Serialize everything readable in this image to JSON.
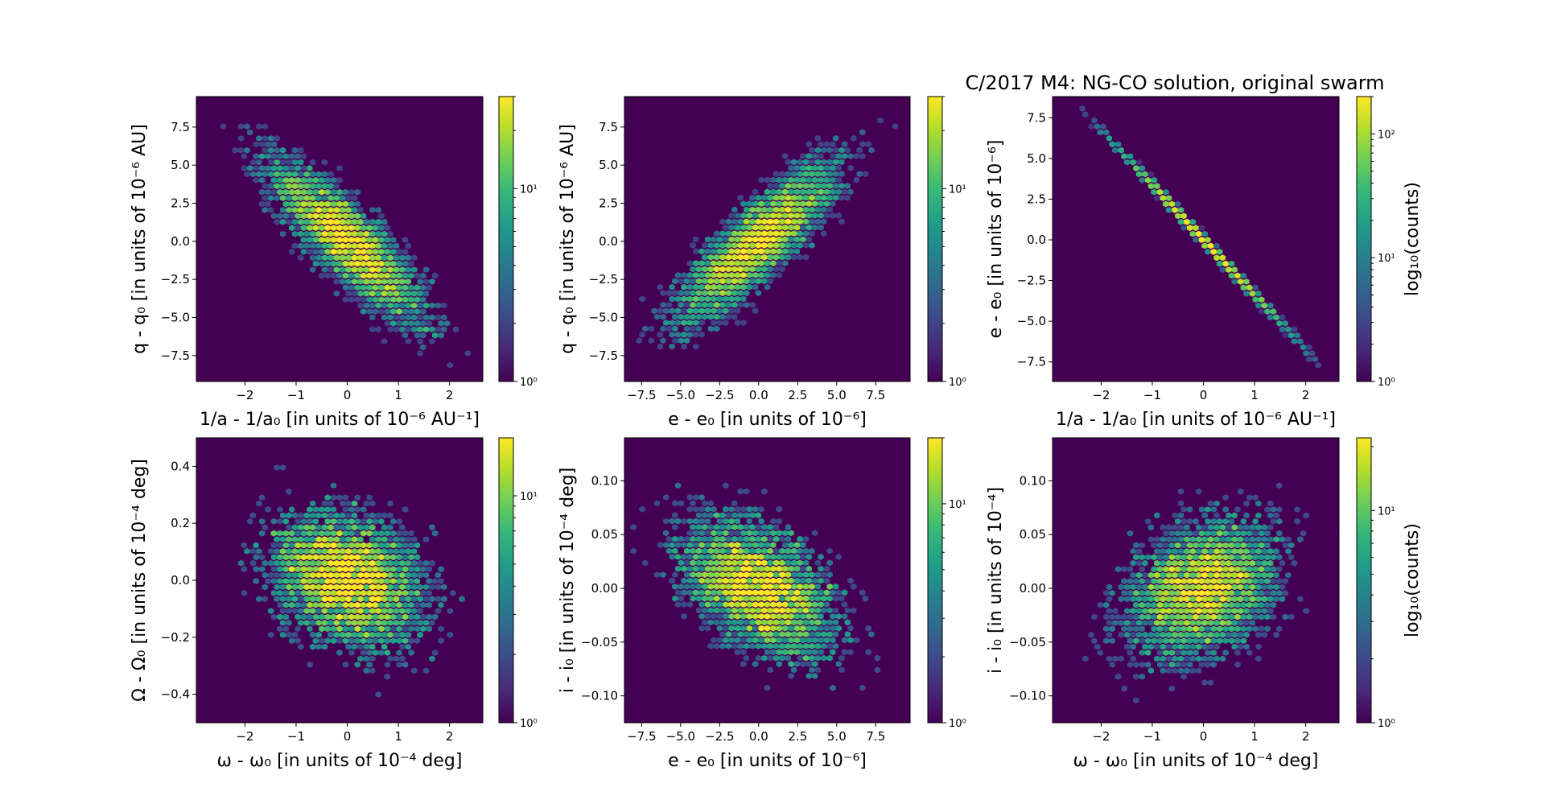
{
  "figure": {
    "title": "C/2017 M4: NG-CO solution, original swarm"
  },
  "chart_data": [
    {
      "type": "heatmap",
      "xlabel": "1/a - 1/a₀ [in units of 10⁻⁶ AU⁻¹]",
      "ylabel": "q - q₀ [in units of 10⁻⁶ AU]",
      "xlim": [
        -2.95,
        2.65
      ],
      "ylim": [
        -9.2,
        9.5
      ],
      "xticks": [
        -2,
        -1,
        0,
        1,
        2
      ],
      "xticklabels": [
        "−2",
        "−1",
        "0",
        "1",
        "2"
      ],
      "yticks": [
        7.5,
        5.0,
        2.5,
        0.0,
        -2.5,
        -5.0,
        -7.5
      ],
      "yticklabels": [
        "7.5",
        "5.0",
        "2.5",
        "0.0",
        "−2.5",
        "−5.0",
        "−7.5"
      ],
      "correlation": -0.85,
      "x_sd": 0.8,
      "y_sd": 2.8,
      "colorbar": {
        "scale": "log",
        "range": [
          1,
          30
        ],
        "ticklabels": [
          "10⁰",
          "10¹"
        ],
        "label": ""
      }
    },
    {
      "type": "heatmap",
      "xlabel": "e - e₀ [in units of 10⁻⁶]",
      "ylabel": "q - q₀ [in units of 10⁻⁶ AU]",
      "xlim": [
        -8.6,
        9.7
      ],
      "ylim": [
        -9.2,
        9.5
      ],
      "xticks": [
        -7.5,
        -5.0,
        -2.5,
        0.0,
        2.5,
        5.0,
        7.5
      ],
      "xticklabels": [
        "−7.5",
        "−5.0",
        "−2.5",
        "0.0",
        "2.5",
        "5.0",
        "7.5"
      ],
      "yticks": [
        7.5,
        5.0,
        2.5,
        0.0,
        -2.5,
        -5.0,
        -7.5
      ],
      "yticklabels": [
        "7.5",
        "5.0",
        "2.5",
        "0.0",
        "−2.5",
        "−5.0",
        "−7.5"
      ],
      "correlation": 0.85,
      "x_sd": 2.7,
      "y_sd": 2.8,
      "colorbar": {
        "scale": "log",
        "range": [
          1,
          30
        ],
        "ticklabels": [
          "10⁰",
          "10¹"
        ],
        "label": ""
      }
    },
    {
      "type": "heatmap",
      "xlabel": "1/a - 1/a₀ [in units of 10⁻⁶ AU⁻¹]",
      "ylabel": "e - e₀ [in units of 10⁻⁶]",
      "xlim": [
        -2.95,
        2.65
      ],
      "ylim": [
        -8.7,
        8.8
      ],
      "xticks": [
        -2,
        -1,
        0,
        1,
        2
      ],
      "xticklabels": [
        "−2",
        "−1",
        "0",
        "1",
        "2"
      ],
      "yticks": [
        7.5,
        5.0,
        2.5,
        0.0,
        -2.5,
        -5.0,
        -7.5
      ],
      "yticklabels": [
        "7.5",
        "5.0",
        "2.5",
        "0.0",
        "−2.5",
        "−5.0",
        "−7.5"
      ],
      "correlation": -0.999,
      "x_sd": 0.8,
      "y_sd": 2.7,
      "colorbar": {
        "scale": "log",
        "range": [
          1,
          200
        ],
        "ticklabels": [
          "10⁰",
          "10¹",
          "10²"
        ],
        "label": "log₁₀(counts)"
      }
    },
    {
      "type": "heatmap",
      "xlabel": "ω - ω₀ [in units of 10⁻⁴ deg]",
      "ylabel": "Ω - Ω₀ [in units of 10⁻⁴ deg]",
      "xlim": [
        -2.95,
        2.65
      ],
      "ylim": [
        -0.5,
        0.5
      ],
      "xticks": [
        -2,
        -1,
        0,
        1,
        2
      ],
      "xticklabels": [
        "−2",
        "−1",
        "0",
        "1",
        "2"
      ],
      "yticks": [
        0.4,
        0.2,
        0.0,
        -0.2,
        -0.4
      ],
      "yticklabels": [
        "0.4",
        "0.2",
        "0.0",
        "−0.2",
        "−0.4"
      ],
      "correlation": -0.25,
      "x_sd": 0.8,
      "y_sd": 0.13,
      "colorbar": {
        "scale": "log",
        "range": [
          1,
          18
        ],
        "ticklabels": [
          "10⁰",
          "10¹"
        ],
        "label": ""
      }
    },
    {
      "type": "heatmap",
      "xlabel": "e - e₀ [in units of 10⁻⁶]",
      "ylabel": "i - i₀ [in units of 10⁻⁴ deg]",
      "xlim": [
        -8.6,
        9.7
      ],
      "ylim": [
        -0.125,
        0.14
      ],
      "xticks": [
        -7.5,
        -5.0,
        -2.5,
        0.0,
        2.5,
        5.0,
        7.5
      ],
      "xticklabels": [
        "−7.5",
        "−5.0",
        "−2.5",
        "0.0",
        "2.5",
        "5.0",
        "7.5"
      ],
      "yticks": [
        0.1,
        0.05,
        0.0,
        -0.05,
        -0.1
      ],
      "yticklabels": [
        "0.10",
        "0.05",
        "0.00",
        "−0.05",
        "−0.10"
      ],
      "correlation": -0.45,
      "x_sd": 2.7,
      "y_sd": 0.035,
      "colorbar": {
        "scale": "log",
        "range": [
          1,
          20
        ],
        "ticklabels": [
          "10⁰",
          "10¹"
        ],
        "label": ""
      }
    },
    {
      "type": "heatmap",
      "xlabel": "ω - ω₀ [in units of 10⁻⁴ deg]",
      "ylabel": "i - i₀ [in units of 10⁻⁴]",
      "xlim": [
        -2.95,
        2.65
      ],
      "ylim": [
        -0.125,
        0.14
      ],
      "xticks": [
        -2,
        -1,
        0,
        1,
        2
      ],
      "xticklabels": [
        "−2",
        "−1",
        "0",
        "1",
        "2"
      ],
      "yticks": [
        0.1,
        0.05,
        0.0,
        -0.05,
        -0.1
      ],
      "yticklabels": [
        "0.10",
        "0.05",
        "0.00",
        "−0.05",
        "−0.10"
      ],
      "correlation": 0.3,
      "x_sd": 0.8,
      "y_sd": 0.035,
      "colorbar": {
        "scale": "log",
        "range": [
          1,
          22
        ],
        "ticklabels": [
          "10⁰",
          "10¹"
        ],
        "label": "log₁₀(counts)"
      }
    }
  ]
}
